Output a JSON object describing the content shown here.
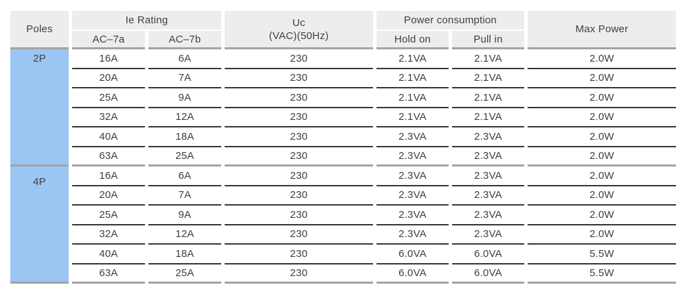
{
  "colors": {
    "c_page_bg": "#ffffff",
    "c_header_bg": "#ededed",
    "c_poles_bg": "#9bc5f3",
    "c_text": "#3f3f3f",
    "c_line_dark": "#3a3533",
    "c_line_gray": "#a3a3a3"
  },
  "table": {
    "headers": {
      "poles": "Poles",
      "ie_rating": "Ie Rating",
      "ac7a": "AC–7a",
      "ac7b": "AC–7b",
      "uc_line1": "Uc",
      "uc_line2": "(VAC)(50Hz)",
      "power_consumption": "Power consumption",
      "hold_on": "Hold on",
      "pull_in": "Pull in",
      "max_power": "Max Power"
    },
    "sections": [
      {
        "poles": "2P",
        "rows": [
          {
            "ac7a": "16A",
            "ac7b": "6A",
            "uc": "230",
            "hold_on": "2.1VA",
            "pull_in": "2.1VA",
            "max_power": "2.0W"
          },
          {
            "ac7a": "20A",
            "ac7b": "7A",
            "uc": "230",
            "hold_on": "2.1VA",
            "pull_in": "2.1VA",
            "max_power": "2.0W"
          },
          {
            "ac7a": "25A",
            "ac7b": "9A",
            "uc": "230",
            "hold_on": "2.1VA",
            "pull_in": "2.1VA",
            "max_power": "2.0W"
          },
          {
            "ac7a": "32A",
            "ac7b": "12A",
            "uc": "230",
            "hold_on": "2.1VA",
            "pull_in": "2.1VA",
            "max_power": "2.0W"
          },
          {
            "ac7a": "40A",
            "ac7b": "18A",
            "uc": "230",
            "hold_on": "2.3VA",
            "pull_in": "2.3VA",
            "max_power": "2.0W"
          },
          {
            "ac7a": "63A",
            "ac7b": "25A",
            "uc": "230",
            "hold_on": "2.3VA",
            "pull_in": "2.3VA",
            "max_power": "2.0W"
          }
        ]
      },
      {
        "poles": "4P",
        "rows": [
          {
            "ac7a": "16A",
            "ac7b": "6A",
            "uc": "230",
            "hold_on": "2.3VA",
            "pull_in": "2.3VA",
            "max_power": "2.0W"
          },
          {
            "ac7a": "20A",
            "ac7b": "7A",
            "uc": "230",
            "hold_on": "2.3VA",
            "pull_in": "2.3VA",
            "max_power": "2.0W"
          },
          {
            "ac7a": "25A",
            "ac7b": "9A",
            "uc": "230",
            "hold_on": "2.3VA",
            "pull_in": "2.3VA",
            "max_power": "2.0W"
          },
          {
            "ac7a": "32A",
            "ac7b": "12A",
            "uc": "230",
            "hold_on": "2.3VA",
            "pull_in": "2.3VA",
            "max_power": "2.0W"
          },
          {
            "ac7a": "40A",
            "ac7b": "18A",
            "uc": "230",
            "hold_on": "6.0VA",
            "pull_in": "6.0VA",
            "max_power": "5.5W"
          },
          {
            "ac7a": "63A",
            "ac7b": "25A",
            "uc": "230",
            "hold_on": "6.0VA",
            "pull_in": "6.0VA",
            "max_power": "5.5W"
          }
        ]
      }
    ]
  }
}
